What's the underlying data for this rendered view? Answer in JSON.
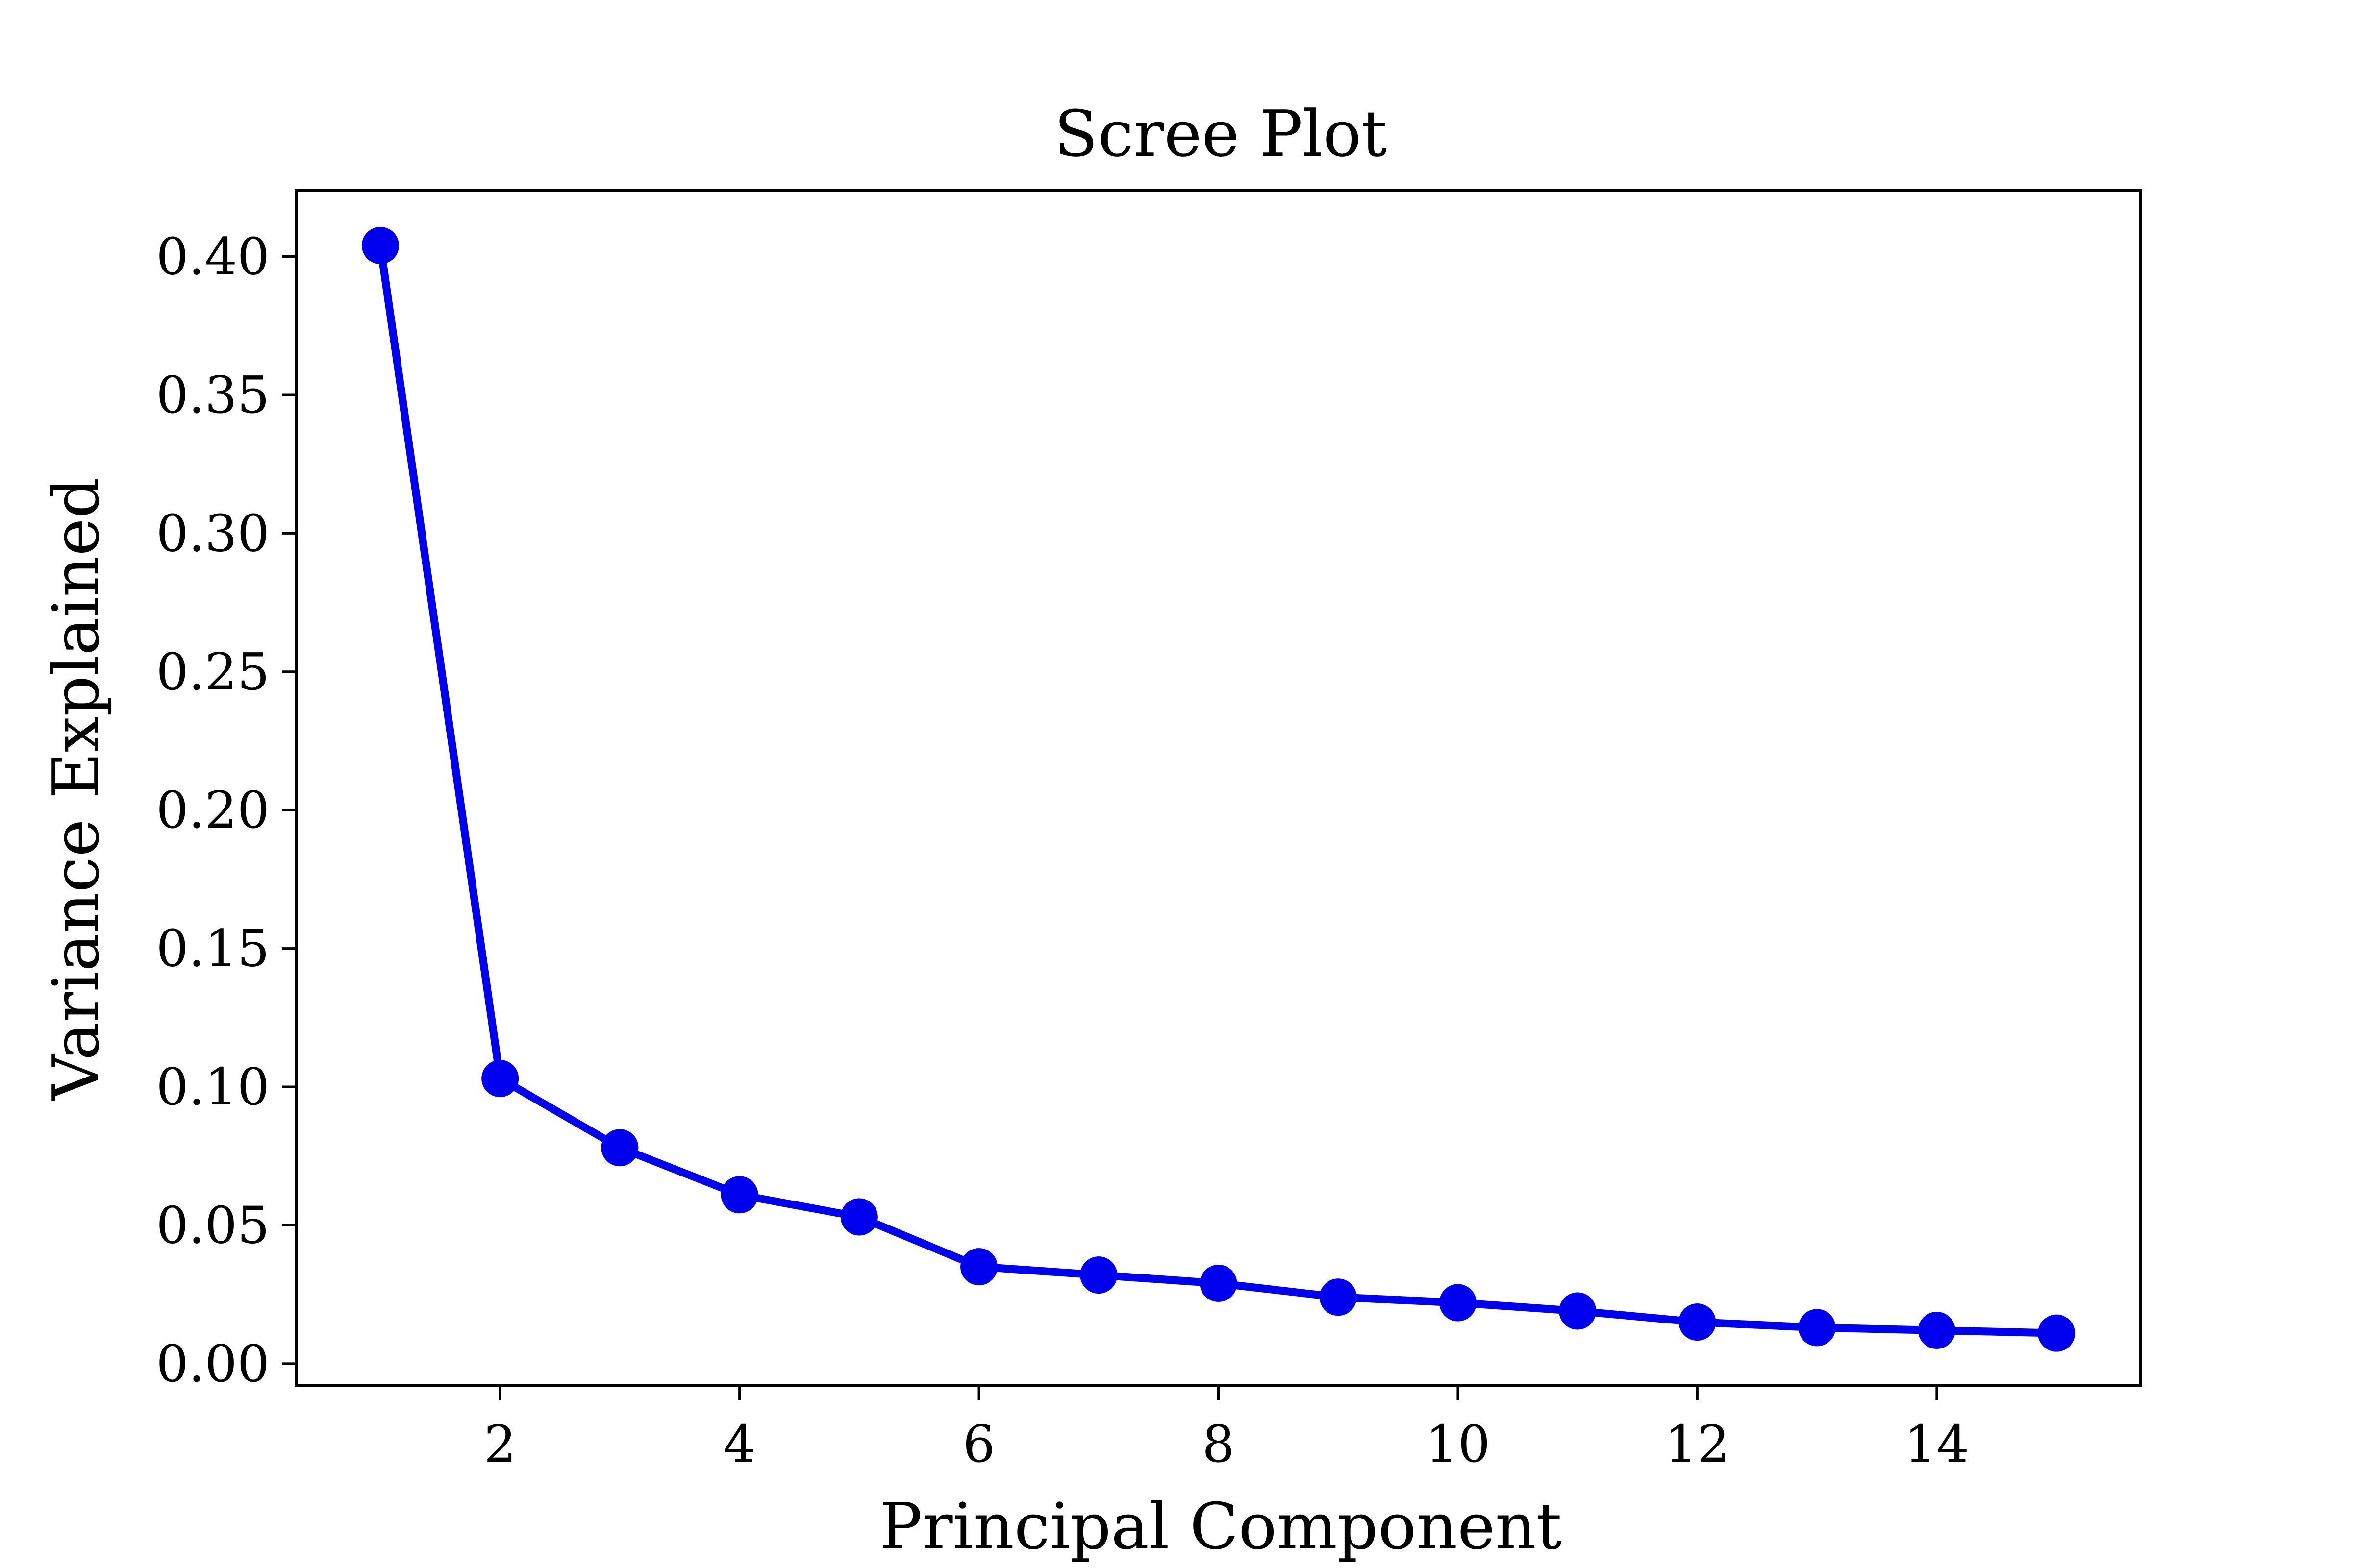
{
  "chart_data": {
    "type": "line",
    "title": "Scree Plot",
    "xlabel": "Principal Component",
    "ylabel": "Variance Explained",
    "x": [
      1,
      2,
      3,
      4,
      5,
      6,
      7,
      8,
      9,
      10,
      11,
      12,
      13,
      14,
      15
    ],
    "series": [
      {
        "values": [
          0.404,
          0.103,
          0.078,
          0.061,
          0.053,
          0.035,
          0.032,
          0.029,
          0.024,
          0.022,
          0.019,
          0.015,
          0.013,
          0.012,
          0.011
        ],
        "color": "#0000ee",
        "marker": "circle"
      }
    ],
    "xlim": [
      0.3,
      15.7
    ],
    "ylim": [
      -0.008,
      0.424
    ],
    "xticks": [
      2,
      4,
      6,
      8,
      10,
      12,
      14
    ],
    "xtick_labels": [
      "2",
      "4",
      "6",
      "8",
      "10",
      "12",
      "14"
    ],
    "yticks": [
      0.0,
      0.05,
      0.1,
      0.15,
      0.2,
      0.25,
      0.3,
      0.35,
      0.4
    ],
    "ytick_labels": [
      "0.00",
      "0.05",
      "0.10",
      "0.15",
      "0.20",
      "0.25",
      "0.30",
      "0.35",
      "0.40"
    ],
    "grid": false,
    "legend": "none"
  }
}
